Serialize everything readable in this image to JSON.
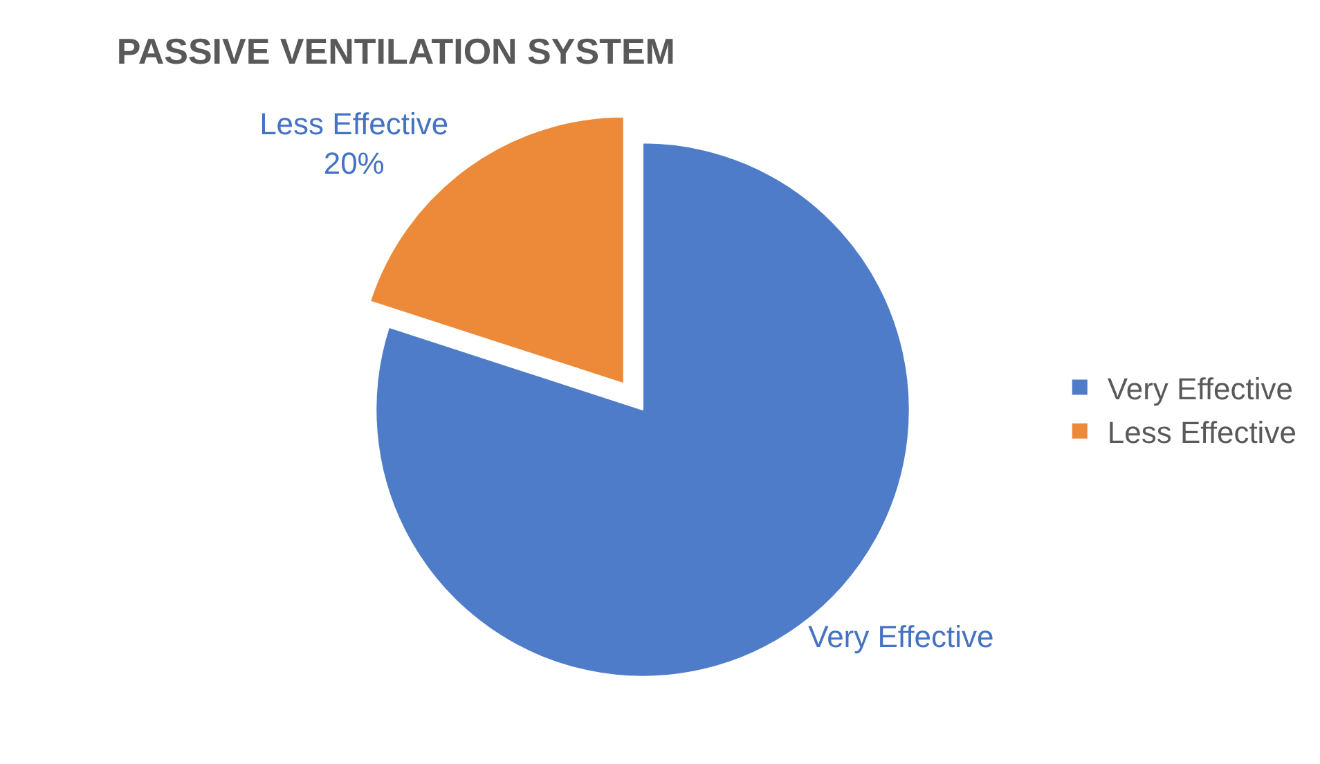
{
  "chart_data": {
    "type": "pie",
    "title": "PASSIVE VENTILATION SYSTEM",
    "categories": [
      "Very Effective",
      "Less Effective"
    ],
    "values": [
      80,
      20
    ],
    "colors": [
      "#4f7cc8",
      "#ed8a3a"
    ],
    "value_labels": [
      null,
      "20%"
    ],
    "legend": "right"
  }
}
